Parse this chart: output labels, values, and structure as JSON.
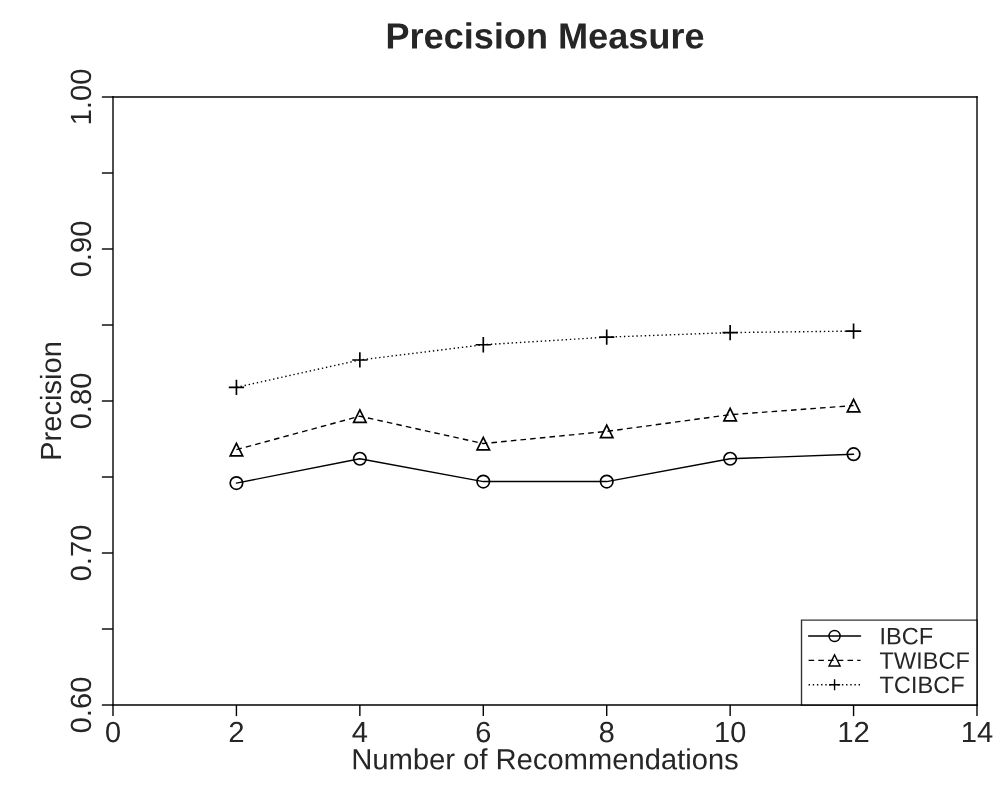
{
  "chart_data": {
    "type": "line",
    "title": "Precision Measure",
    "xlabel": "Number of Recommendations",
    "ylabel": "Precision",
    "x": [
      2,
      4,
      6,
      8,
      10,
      12
    ],
    "series": [
      {
        "name": "IBCF",
        "color": "#000000",
        "marker": "circle",
        "line_style": "solid",
        "values": [
          0.746,
          0.762,
          0.747,
          0.747,
          0.762,
          0.765
        ]
      },
      {
        "name": "TWIBCF",
        "color": "#000000",
        "marker": "triangle",
        "line_style": "dashed",
        "values": [
          0.768,
          0.79,
          0.772,
          0.78,
          0.791,
          0.797
        ]
      },
      {
        "name": "TCIBCF",
        "color": "#000000",
        "marker": "cross",
        "line_style": "dotted",
        "values": [
          0.809,
          0.827,
          0.837,
          0.842,
          0.845,
          0.846
        ]
      }
    ],
    "xlim": [
      0,
      14
    ],
    "xticks": [
      0,
      2,
      4,
      6,
      8,
      10,
      12,
      14
    ],
    "ylim": [
      0.6,
      1.0
    ],
    "yticks": [
      {
        "value": 0.6,
        "label": "0.60"
      },
      {
        "value": 0.65,
        "label": null
      },
      {
        "value": 0.7,
        "label": "0.70"
      },
      {
        "value": 0.75,
        "label": null
      },
      {
        "value": 0.8,
        "label": "0.80"
      },
      {
        "value": 0.85,
        "label": null
      },
      {
        "value": 0.9,
        "label": "0.90"
      },
      {
        "value": 0.95,
        "label": null
      },
      {
        "value": 1.0,
        "label": "1.00"
      }
    ],
    "legend": "bottom right"
  }
}
